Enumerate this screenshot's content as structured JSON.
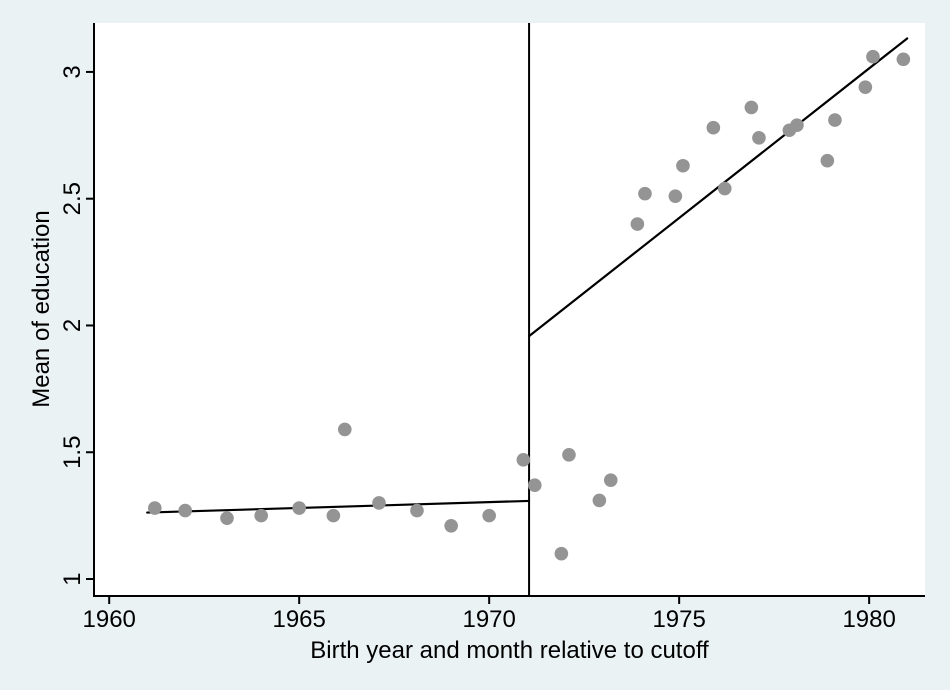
{
  "figure": {
    "background_color": "#eaf2f3",
    "plot_background_color": "#ffffff",
    "axis_color": "#000000",
    "text_color": "#000000"
  },
  "chart_data": {
    "type": "scatter",
    "title": "",
    "xlabel": "Birth year and month relative to cutoff",
    "ylabel": "Mean of education",
    "xlim": [
      1959.6,
      1981.47
    ],
    "ylim": [
      0.933,
      3.193
    ],
    "xticks": [
      1960,
      1965,
      1970,
      1975,
      1980
    ],
    "xtick_labels": [
      "1960",
      "1965",
      "1970",
      "1975",
      "1980"
    ],
    "yticks": [
      1,
      1.5,
      2,
      2.5,
      3
    ],
    "ytick_labels": [
      "1",
      "1.5",
      "2",
      "2.5",
      "3"
    ],
    "grid": false,
    "legend": null,
    "marker_color": "#949494",
    "line_color": "#000000",
    "cutoff_line_x": 1971.05,
    "points": [
      [
        1961.2,
        1.28
      ],
      [
        1962.0,
        1.27
      ],
      [
        1963.1,
        1.24
      ],
      [
        1964.0,
        1.25
      ],
      [
        1965.0,
        1.28
      ],
      [
        1965.9,
        1.25
      ],
      [
        1966.2,
        1.59
      ],
      [
        1967.1,
        1.3
      ],
      [
        1968.1,
        1.27
      ],
      [
        1969.0,
        1.21
      ],
      [
        1970.0,
        1.25
      ],
      [
        1970.9,
        1.47
      ],
      [
        1971.2,
        1.37
      ],
      [
        1971.9,
        1.1
      ],
      [
        1972.1,
        1.49
      ],
      [
        1972.9,
        1.31
      ],
      [
        1973.2,
        1.39
      ],
      [
        1973.9,
        2.4
      ],
      [
        1974.1,
        2.52
      ],
      [
        1974.9,
        2.51
      ],
      [
        1975.1,
        2.63
      ],
      [
        1975.9,
        2.78
      ],
      [
        1976.2,
        2.54
      ],
      [
        1976.9,
        2.86
      ],
      [
        1977.1,
        2.74
      ],
      [
        1977.9,
        2.77
      ],
      [
        1978.1,
        2.79
      ],
      [
        1978.9,
        2.65
      ],
      [
        1979.1,
        2.81
      ],
      [
        1979.9,
        2.94
      ],
      [
        1980.1,
        3.06
      ],
      [
        1980.9,
        3.05
      ]
    ],
    "fit_lines": [
      {
        "name": "pre-cutoff-fit-line",
        "x": [
          1961.0,
          1971.05
        ],
        "y": [
          1.262,
          1.308
        ]
      },
      {
        "name": "post-cutoff-fit-line",
        "x": [
          1971.05,
          1981.0
        ],
        "y": [
          1.958,
          3.132
        ]
      }
    ]
  }
}
